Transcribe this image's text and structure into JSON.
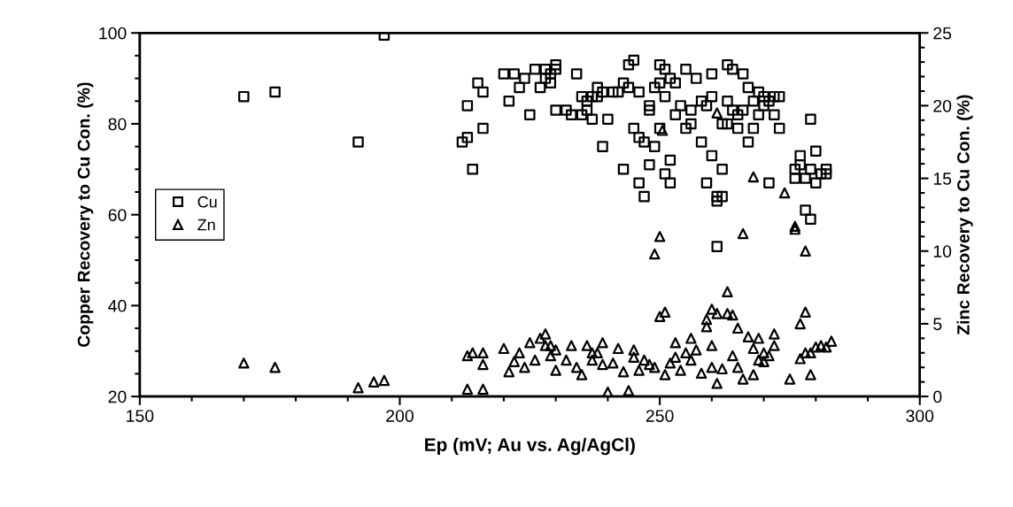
{
  "chart_data": {
    "type": "scatter",
    "xlabel": "Ep (mV; Au vs. Ag/AgCl)",
    "ylabel": "Copper Recovery to Cu Con. (%)",
    "y2label": "Zinc Recovery to Cu Con. (%)",
    "xlim": [
      150,
      300
    ],
    "xticks": [
      150,
      {
        "value": 160,
        "label": null
      },
      {
        "value": 170,
        "label": null
      },
      {
        "value": 180,
        "label": null
      },
      {
        "value": 190,
        "label": null
      },
      200,
      {
        "value": 210,
        "label": null
      },
      {
        "value": 220,
        "label": null
      },
      {
        "value": 230,
        "label": null
      },
      {
        "value": 240,
        "label": null
      },
      250,
      {
        "value": 260,
        "label": null
      },
      {
        "value": 270,
        "label": null
      },
      {
        "value": 280,
        "label": null
      },
      {
        "value": 290,
        "label": null
      },
      300
    ],
    "ylim": [
      20,
      100
    ],
    "yticks": [
      20,
      {
        "value": 25,
        "label": null
      },
      {
        "value": 30,
        "label": null
      },
      {
        "value": 35,
        "label": null
      },
      40,
      {
        "value": 45,
        "label": null
      },
      {
        "value": 50,
        "label": null
      },
      {
        "value": 55,
        "label": null
      },
      60,
      {
        "value": 65,
        "label": null
      },
      {
        "value": 70,
        "label": null
      },
      {
        "value": 75,
        "label": null
      },
      80,
      {
        "value": 85,
        "label": null
      },
      {
        "value": 90,
        "label": null
      },
      {
        "value": 95,
        "label": null
      },
      100
    ],
    "y2lim": [
      0,
      25
    ],
    "y2ticks": [
      0,
      {
        "value": 1,
        "label": null
      },
      {
        "value": 2,
        "label": null
      },
      {
        "value": 3,
        "label": null
      },
      {
        "value": 4,
        "label": null
      },
      5,
      {
        "value": 6,
        "label": null
      },
      {
        "value": 7,
        "label": null
      },
      {
        "value": 8,
        "label": null
      },
      {
        "value": 9,
        "label": null
      },
      10,
      {
        "value": 11,
        "label": null
      },
      {
        "value": 12,
        "label": null
      },
      {
        "value": 13,
        "label": null
      },
      {
        "value": 14,
        "label": null
      },
      15,
      {
        "value": 16,
        "label": null
      },
      {
        "value": 17,
        "label": null
      },
      {
        "value": 18,
        "label": null
      },
      {
        "value": 19,
        "label": null
      },
      20,
      {
        "value": 21,
        "label": null
      },
      {
        "value": 22,
        "label": null
      },
      {
        "value": 23,
        "label": null
      },
      {
        "value": 24,
        "label": null
      },
      25
    ],
    "grid": false,
    "legend": "left",
    "series": [
      {
        "name": "Cu",
        "color": "#000000",
        "marker": "square",
        "x": [
          170,
          176,
          192,
          197,
          212,
          213,
          213,
          214,
          215,
          216,
          216,
          220,
          221,
          222,
          223,
          224,
          225,
          226,
          227,
          228,
          228,
          229,
          229,
          230,
          230,
          230,
          232,
          233,
          234,
          235,
          235,
          236,
          236,
          237,
          237,
          238,
          238,
          239,
          239,
          240,
          241,
          242,
          243,
          243,
          244,
          244,
          245,
          245,
          246,
          246,
          246,
          247,
          247,
          248,
          248,
          248,
          249,
          249,
          250,
          250,
          250,
          251,
          251,
          251,
          252,
          252,
          252,
          253,
          253,
          254,
          255,
          255,
          256,
          256,
          257,
          258,
          258,
          259,
          259,
          260,
          260,
          260,
          261,
          261,
          261,
          262,
          262,
          262,
          263,
          263,
          263,
          264,
          264,
          265,
          265,
          266,
          266,
          267,
          267,
          268,
          268,
          269,
          269,
          270,
          270,
          271,
          271,
          272,
          272,
          273,
          273,
          276,
          276,
          277,
          277,
          278,
          278,
          279,
          279,
          279,
          280,
          280,
          281,
          282,
          282
        ],
        "values": [
          86,
          87,
          76,
          99.5,
          76,
          77,
          84,
          70,
          89,
          79,
          87,
          91,
          85,
          91,
          88,
          90,
          82,
          92,
          88,
          92,
          90,
          89,
          91,
          92,
          93,
          83,
          83,
          82,
          91,
          82,
          86,
          83,
          85,
          81,
          86,
          88,
          86,
          75,
          87,
          81,
          87,
          87,
          89,
          70,
          93,
          88,
          94,
          79,
          67,
          87,
          77,
          64,
          76,
          83,
          71,
          84,
          75,
          88,
          93,
          89,
          79,
          69,
          92,
          86,
          72,
          90,
          67,
          82,
          89,
          84,
          79,
          92,
          80,
          83,
          90,
          76,
          85,
          84,
          67,
          86,
          91,
          73,
          63,
          64,
          53,
          70,
          64,
          80,
          93,
          80,
          85,
          92,
          83,
          79,
          82,
          91,
          83,
          76,
          88,
          79,
          85,
          87,
          82,
          84,
          86,
          85,
          67,
          82,
          86,
          79,
          86,
          68,
          70,
          73,
          71,
          61,
          68,
          70,
          59,
          81,
          74,
          67,
          69,
          70,
          69
        ]
      },
      {
        "name": "Zn",
        "color": "#000000",
        "marker": "triangle",
        "axis": "y2",
        "x": [
          170,
          176,
          192,
          195,
          197,
          213,
          213,
          214,
          216,
          216,
          216,
          220,
          221,
          222,
          223,
          224,
          225,
          226,
          227,
          228,
          228,
          229,
          229,
          230,
          230,
          232,
          233,
          234,
          235,
          236,
          237,
          237,
          238,
          239,
          239,
          240,
          241,
          242,
          243,
          244,
          245,
          245,
          246,
          247,
          248,
          249,
          249,
          250,
          250,
          250.5,
          251,
          251,
          252,
          253,
          253,
          254,
          255,
          256,
          256,
          257,
          258,
          259,
          259,
          260,
          260,
          260,
          261,
          261,
          261,
          262,
          263,
          263,
          264,
          264,
          265,
          265,
          266,
          266,
          267,
          268,
          268,
          268,
          269,
          269,
          270,
          270,
          271,
          272,
          272,
          274,
          275,
          276,
          276,
          277,
          277,
          278,
          278,
          278,
          279,
          279,
          280,
          281,
          282,
          283
        ],
        "values": [
          2.3,
          2,
          0.6,
          1,
          1.1,
          0.5,
          2.8,
          3,
          3,
          0.5,
          2.2,
          3.3,
          1.7,
          2.4,
          3,
          2,
          3.7,
          2.5,
          4,
          3.5,
          4.3,
          3.5,
          2.8,
          3.2,
          1.8,
          2.5,
          3.5,
          2,
          1.5,
          3.5,
          2.5,
          3,
          3,
          3.7,
          2.2,
          0.3,
          2.3,
          3.3,
          1.7,
          0.4,
          2.7,
          3.2,
          1.8,
          2.5,
          2.2,
          9.8,
          2,
          5.5,
          11,
          18.3,
          5.8,
          1.5,
          2.3,
          3.7,
          2.7,
          1.8,
          3,
          2.5,
          4,
          3.2,
          1.6,
          5.3,
          4.8,
          6,
          2,
          3.5,
          5.7,
          0.9,
          19.5,
          1.9,
          5.7,
          7.2,
          5.6,
          2.8,
          2,
          4.7,
          11.2,
          1.2,
          4.1,
          3.3,
          1.5,
          15.1,
          2.5,
          4,
          3,
          2.4,
          2.8,
          4.3,
          3.5,
          14,
          1.2,
          11.7,
          11.5,
          5,
          2.6,
          10,
          3,
          5.8,
          3,
          1.5,
          3.4,
          3.5,
          3.4,
          3.8
        ]
      }
    ]
  }
}
